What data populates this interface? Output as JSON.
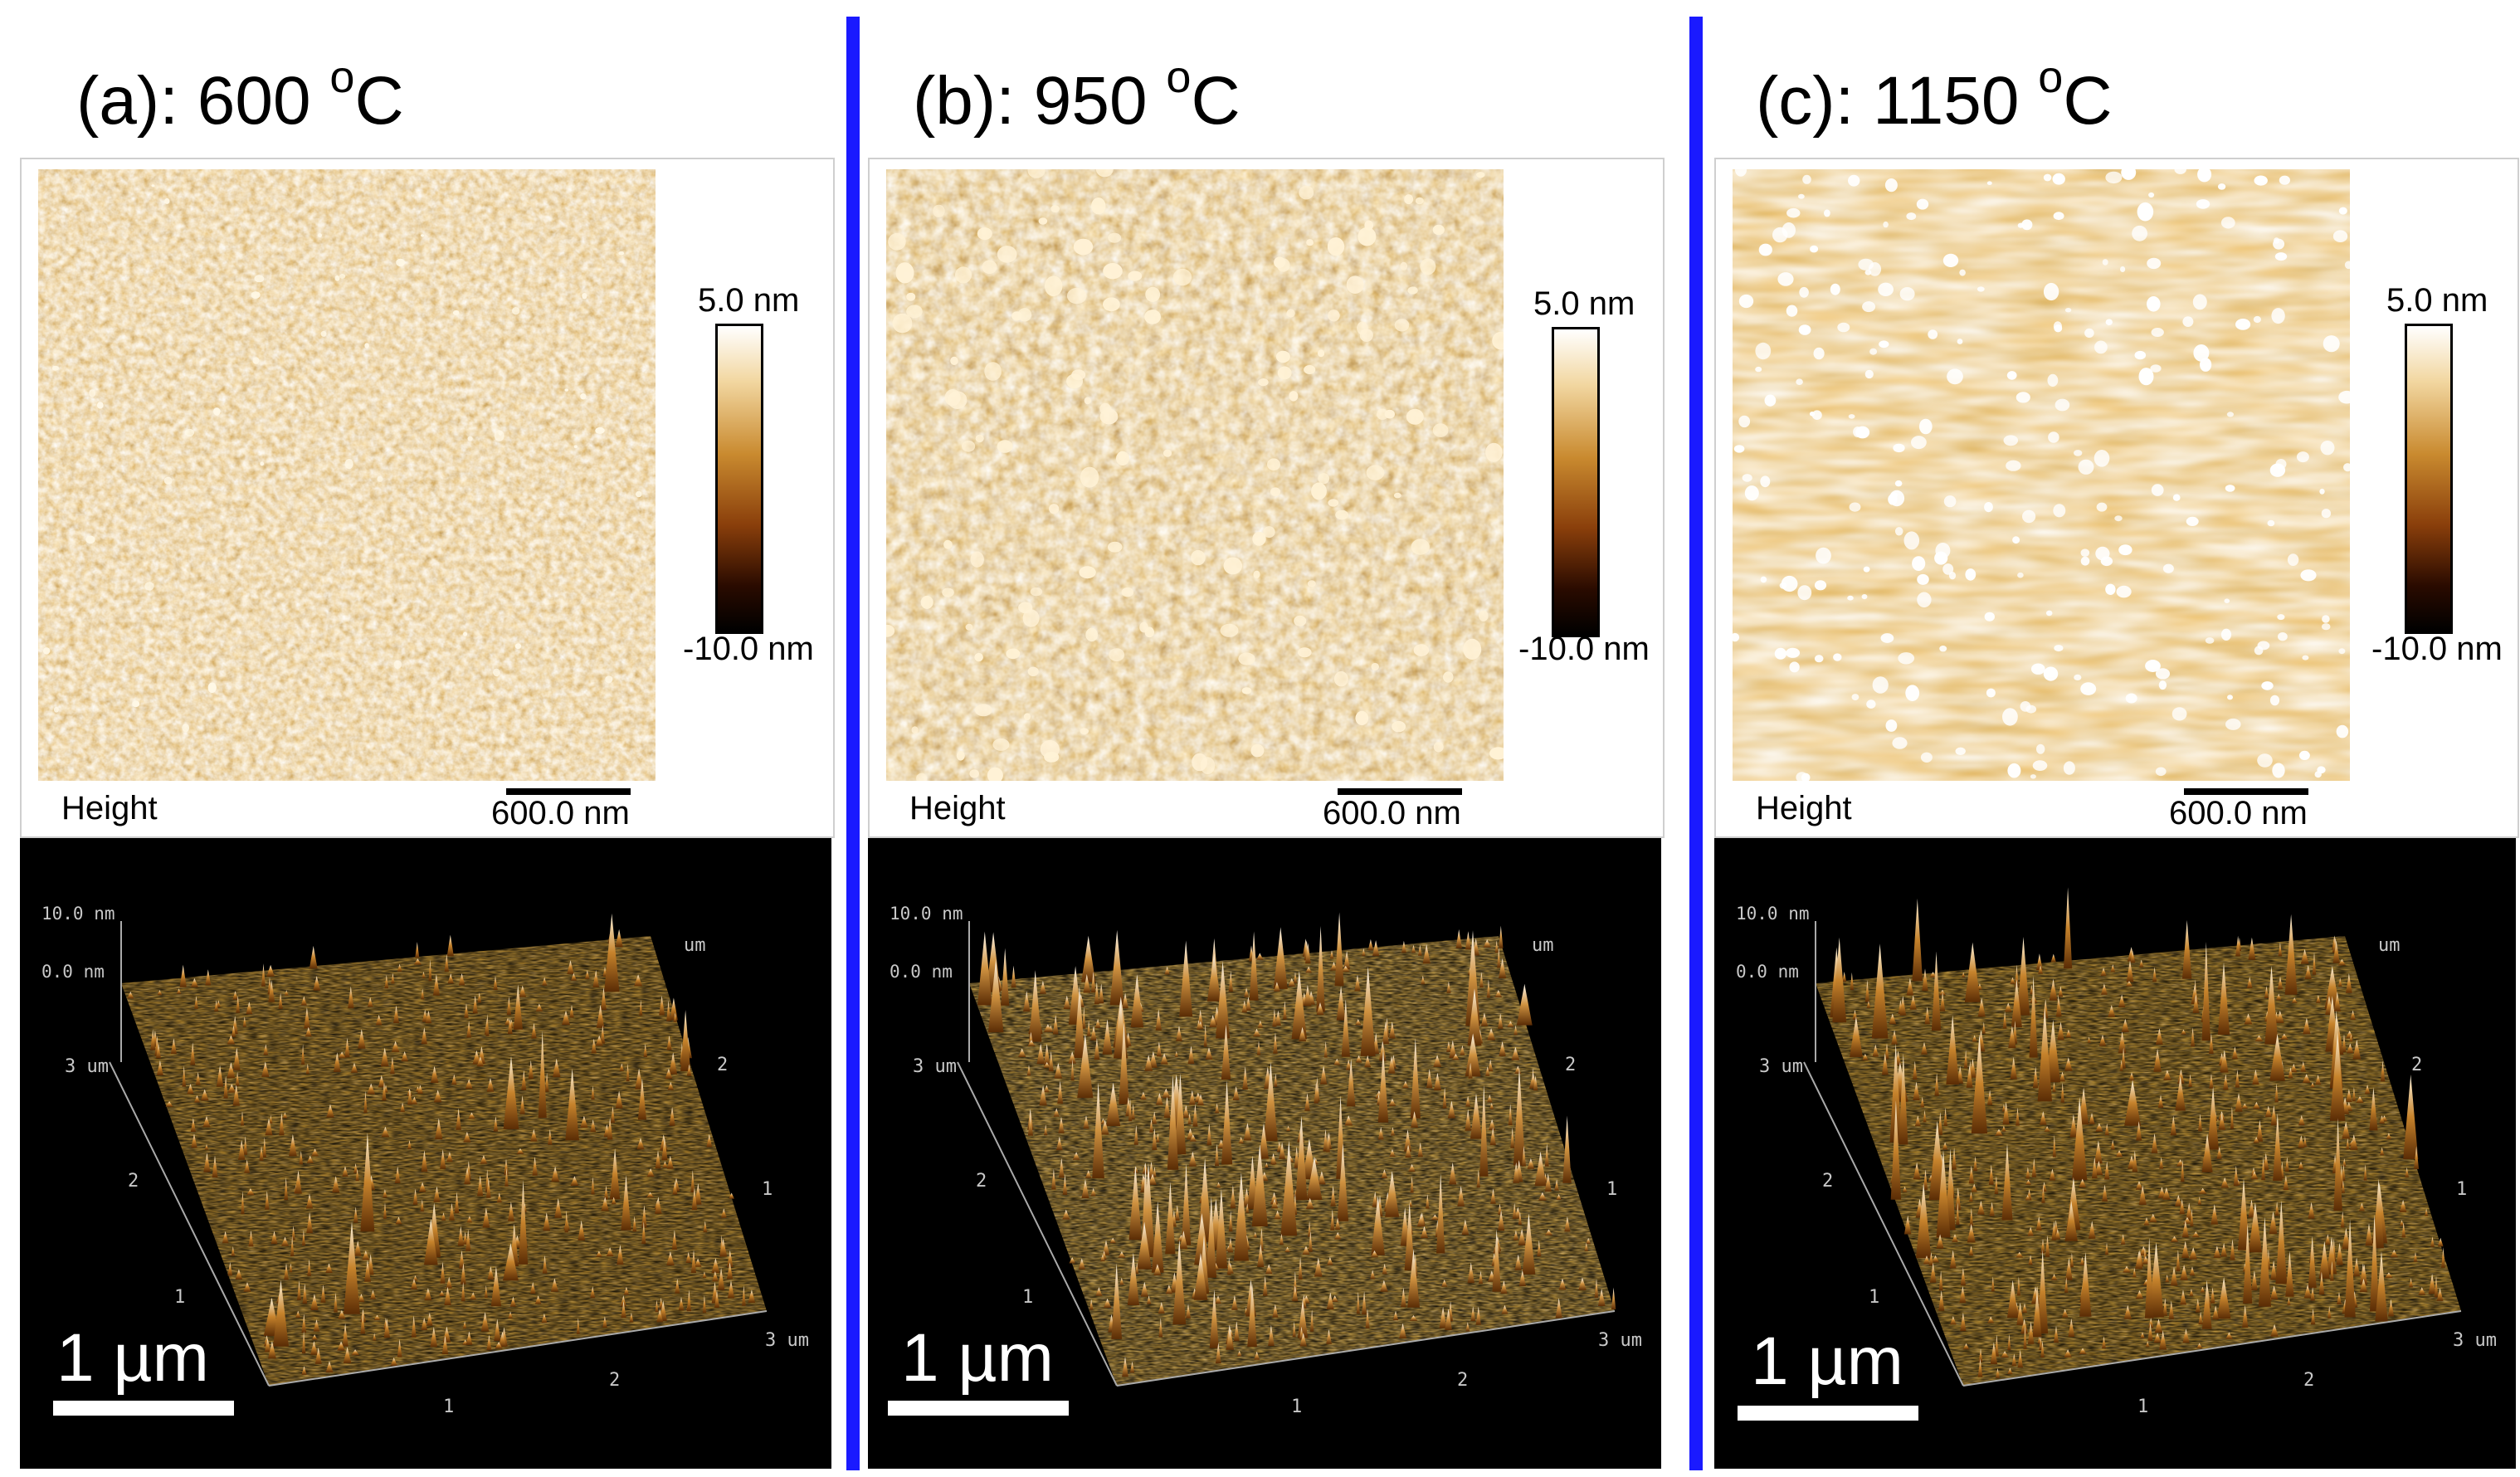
{
  "panels": [
    {
      "title": "(a): 600 ",
      "temp_sup": "o",
      "temp_unit": "C",
      "colorbar_max": "5.0 nm",
      "colorbar_min": "-10.0 nm",
      "map_channel": "Height",
      "scale_bar_2d": "600.0 nm",
      "z_top": "10.0 nm",
      "z_zero": "0.0 nm",
      "axis_y_top": "3 um",
      "axis_ticks": [
        "1",
        "2"
      ],
      "axis_x_end": "3 um",
      "axis_corner_um": "um",
      "scale_bar_3d": "1 µm"
    },
    {
      "title": "(b): 950 ",
      "temp_sup": "o",
      "temp_unit": "C",
      "colorbar_max": "5.0 nm",
      "colorbar_min": "-10.0 nm",
      "map_channel": "Height",
      "scale_bar_2d": "600.0 nm",
      "z_top": "10.0 nm",
      "z_zero": "0.0 nm",
      "axis_y_top": "3 um",
      "axis_ticks": [
        "1",
        "2"
      ],
      "axis_x_end": "3 um",
      "axis_corner_um": "um",
      "scale_bar_3d": "1 µm"
    },
    {
      "title": "(c): 1150 ",
      "temp_sup": "o",
      "temp_unit": "C",
      "colorbar_max": "5.0 nm",
      "colorbar_min": "-10.0 nm",
      "map_channel": "Height",
      "scale_bar_2d": "600.0 nm",
      "z_top": "10.0 nm",
      "z_zero": "0.0 nm",
      "axis_y_top": "3 um",
      "axis_ticks": [
        "1",
        "2"
      ],
      "axis_x_end": "3 um",
      "axis_corner_um": "um",
      "scale_bar_3d": "1 µm"
    }
  ],
  "colors": {
    "divider": "#1a1aff",
    "afm_base": "#a8641c",
    "afm_grain": "#ffffff",
    "background_3d": "#000000"
  }
}
